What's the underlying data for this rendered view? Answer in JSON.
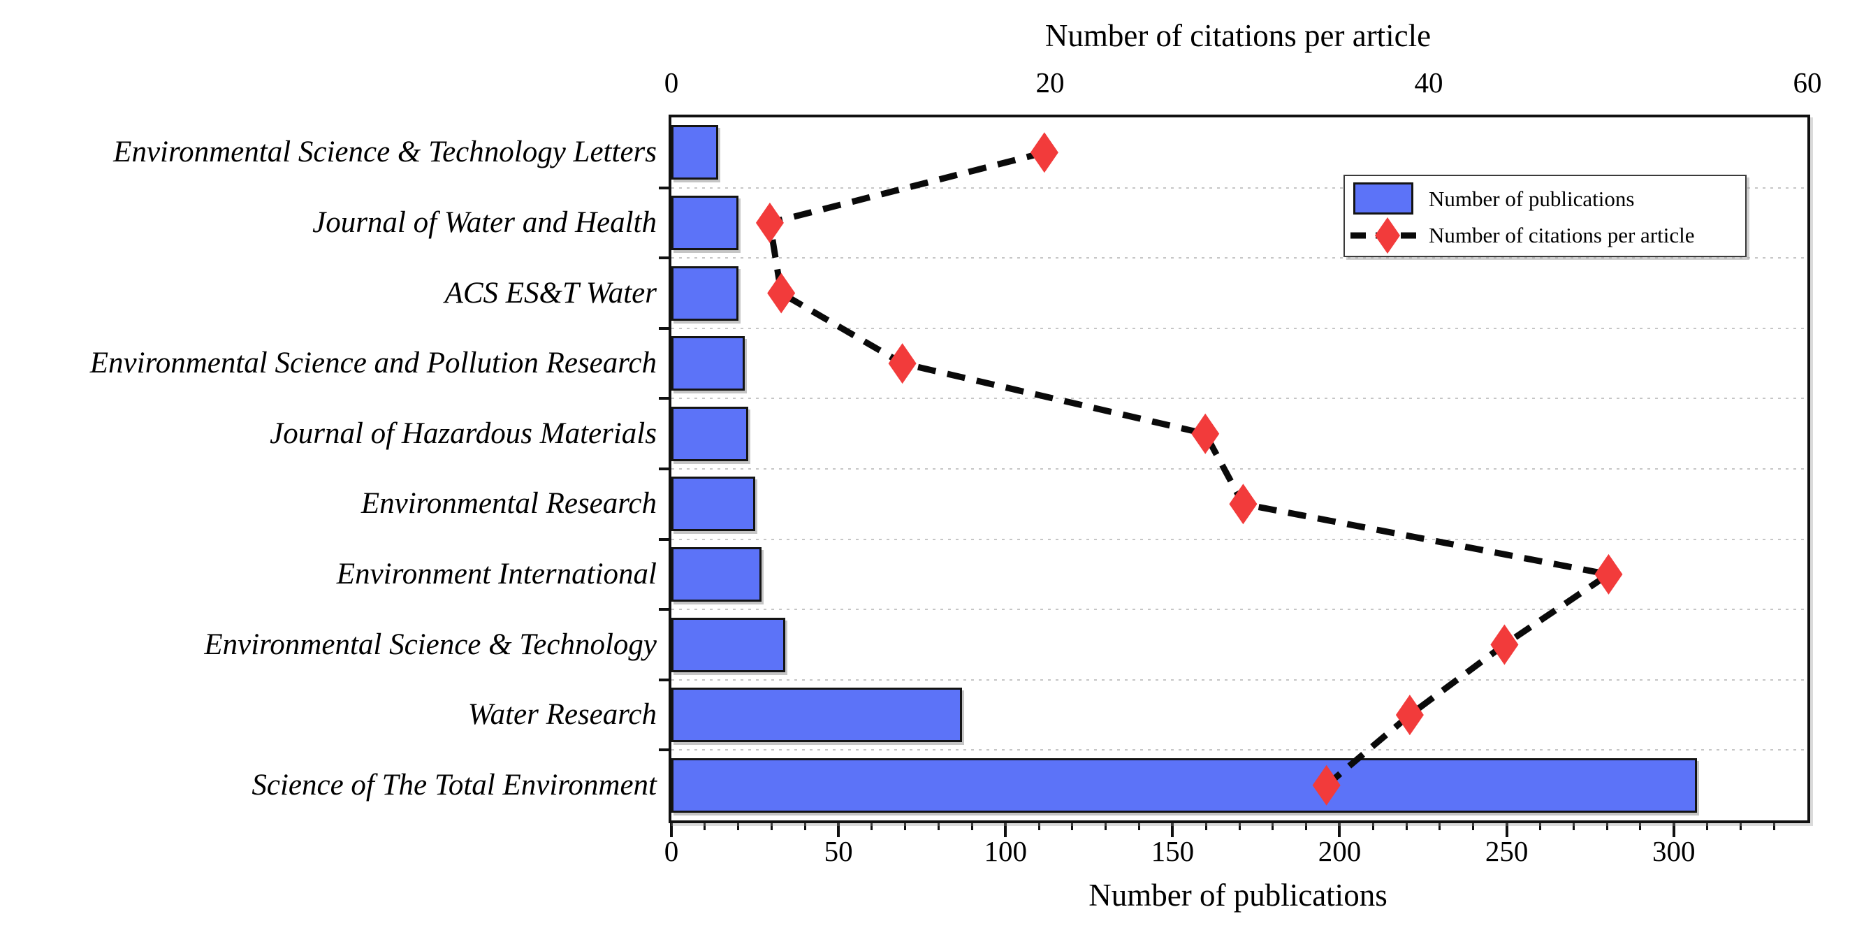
{
  "chart_data": {
    "type": "bar",
    "orientation": "horizontal",
    "categories": [
      "Environmental Science & Technology Letters",
      "Journal of Water and Health",
      "ACS ES&T Water",
      "Environmental Science and Pollution Research",
      "Journal of Hazardous Materials",
      "Environmental Research",
      "Environment International",
      "Environmental Science & Technology",
      "Water Research",
      "Science of The Total Environment"
    ],
    "series": [
      {
        "name": "Number of publications",
        "style": "bar",
        "axis": "bottom",
        "color": "#5C73F8",
        "values": [
          14,
          20,
          20,
          22,
          23,
          25,
          27,
          34,
          87,
          307
        ]
      },
      {
        "name": "Number of citations per article",
        "style": "scatter-diamond-dashed-line",
        "axis": "top",
        "color": "#F23B3B",
        "line_color": "#0a0a0a",
        "values": [
          19.7,
          5.2,
          5.8,
          12.2,
          28.2,
          30.2,
          49.5,
          44,
          39,
          34.6
        ]
      }
    ],
    "top_axis": {
      "title": "Number of citations per article",
      "min": 0,
      "max": 60,
      "major_ticks": [
        "0",
        "20",
        "40",
        "60"
      ],
      "minor_tick_step": 10
    },
    "bottom_axis": {
      "title": "Number of publications",
      "min": 0,
      "max": 340,
      "major_ticks": [
        "0",
        "50",
        "100",
        "150",
        "200",
        "250",
        "300"
      ],
      "minor_tick_step": 10
    },
    "grid": {
      "horizontal_row_separators": true,
      "style": "dotted",
      "color": "#c6c6c6"
    },
    "legend": {
      "position": "upper-right",
      "entries": [
        "Number of publications",
        "Number of citations per article"
      ]
    }
  }
}
